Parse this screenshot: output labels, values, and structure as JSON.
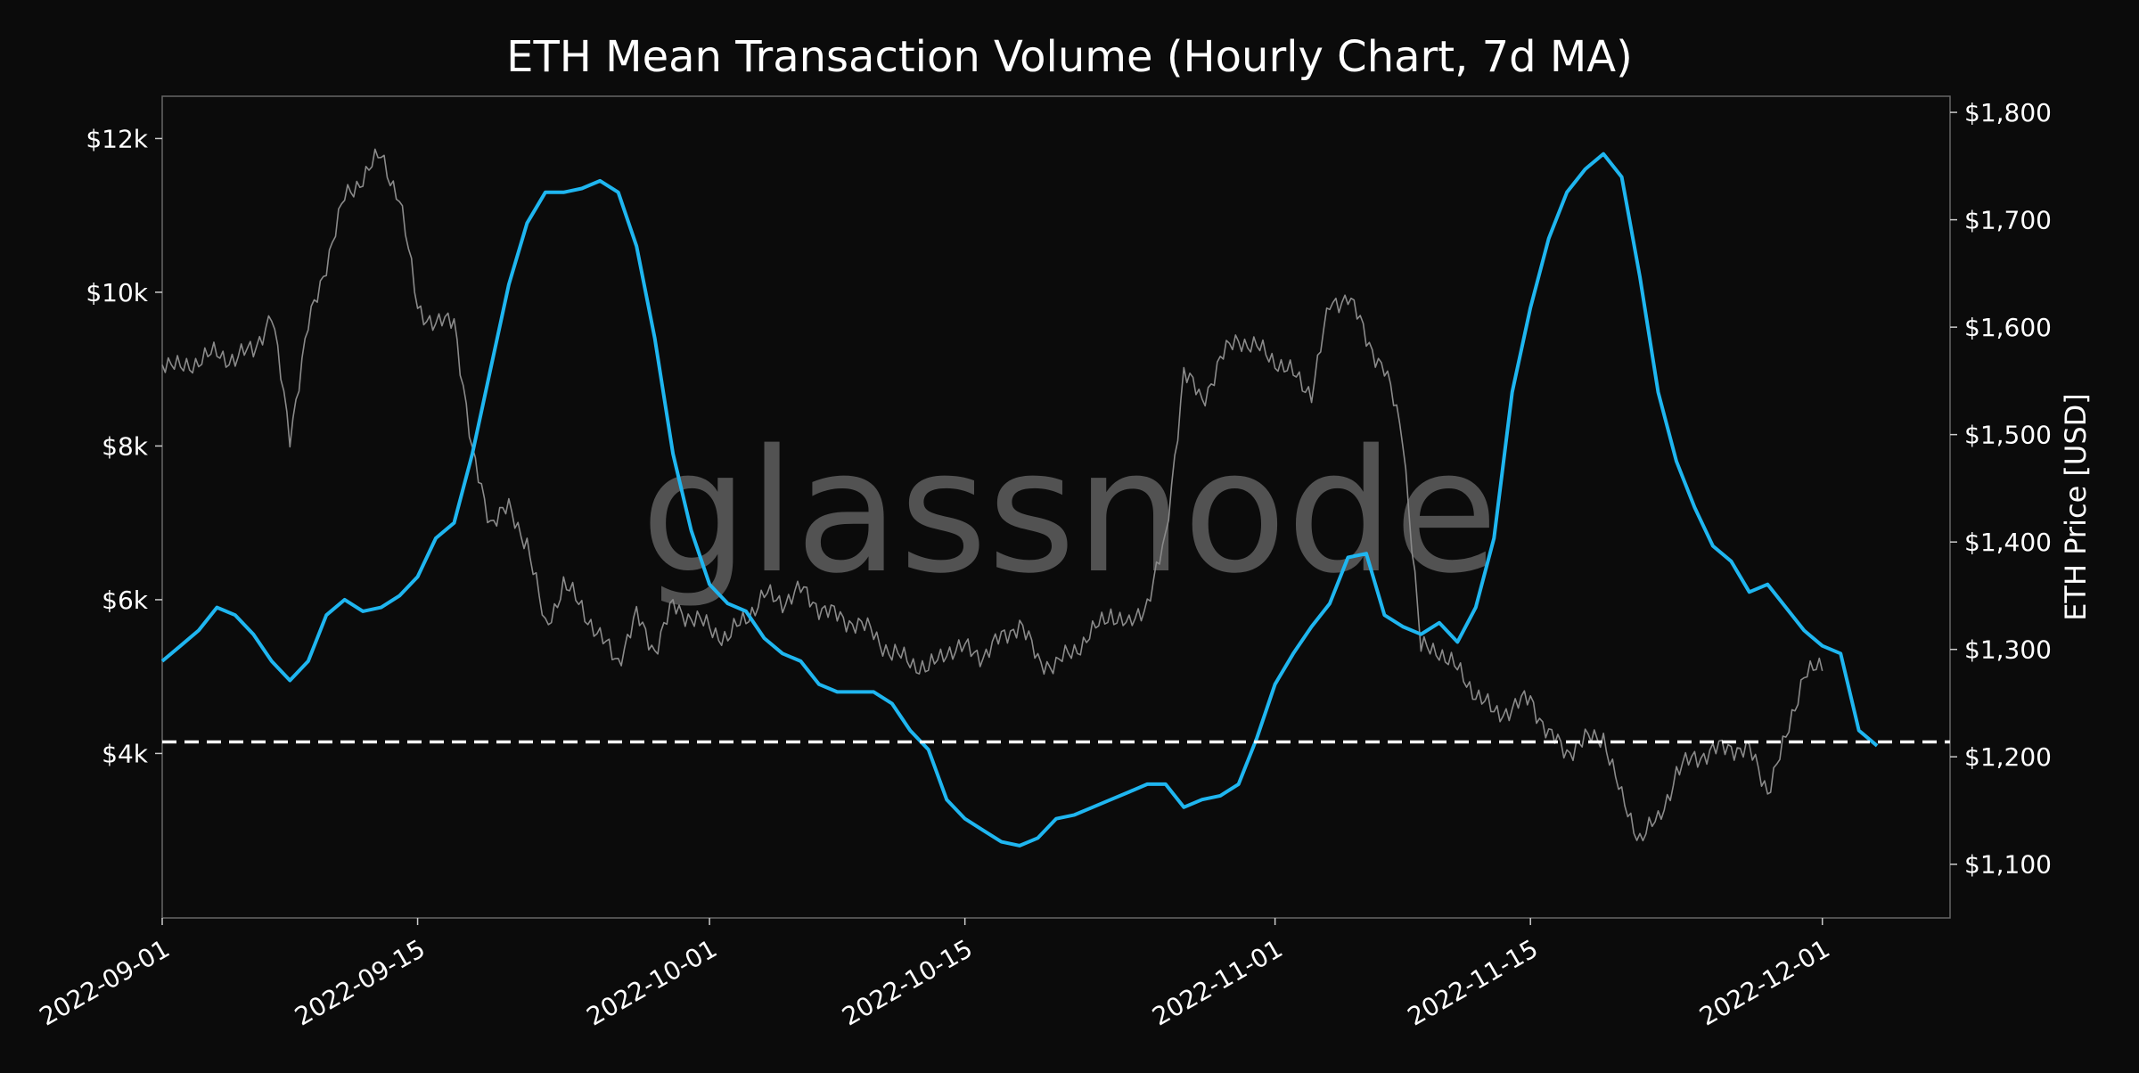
{
  "chart_data": {
    "type": "line",
    "title": "ETH Mean Transaction Volume (Hourly Chart, 7d MA)",
    "watermark": "glassnode",
    "xlabel": "",
    "ylabel_left": "",
    "ylabel_right": "ETH Price [USD]",
    "x_ticks": [
      "2022-09-01",
      "2022-09-15",
      "2022-10-01",
      "2022-10-15",
      "2022-11-01",
      "2022-11-15",
      "2022-12-01"
    ],
    "y_left_ticks": [
      {
        "value": 4000,
        "label": "$4k"
      },
      {
        "value": 6000,
        "label": "$6k"
      },
      {
        "value": 8000,
        "label": "$8k"
      },
      {
        "value": 10000,
        "label": "$10k"
      },
      {
        "value": 12000,
        "label": "$12k"
      }
    ],
    "y_right_ticks": [
      {
        "value": 1100,
        "label": "$1,100"
      },
      {
        "value": 1200,
        "label": "$1,200"
      },
      {
        "value": 1300,
        "label": "$1,300"
      },
      {
        "value": 1400,
        "label": "$1,400"
      },
      {
        "value": 1500,
        "label": "$1,500"
      },
      {
        "value": 1600,
        "label": "$1,600"
      },
      {
        "value": 1700,
        "label": "$1,700"
      },
      {
        "value": 1800,
        "label": "$1,800"
      }
    ],
    "xlim": [
      "2022-09-01",
      "2022-12-08"
    ],
    "ylim_left": [
      1860,
      12550
    ],
    "ylim_right": [
      1050,
      1815
    ],
    "reference_line": {
      "value": 4150,
      "style": "dashed",
      "color": "#ffffff"
    },
    "grid": false,
    "colors": {
      "volume": "#1fb6f0",
      "price": "#8a8a8a",
      "background": "#0b0b0b",
      "axes": "#666666",
      "watermark": "#5a5a5a"
    },
    "series": [
      {
        "axis": "left",
        "color": "#1fb6f0",
        "points": [
          [
            "2022-09-01",
            5200
          ],
          [
            "2022-09-02",
            5400
          ],
          [
            "2022-09-03",
            5600
          ],
          [
            "2022-09-04",
            5900
          ],
          [
            "2022-09-05",
            5800
          ],
          [
            "2022-09-06",
            5550
          ],
          [
            "2022-09-07",
            5200
          ],
          [
            "2022-09-08",
            4950
          ],
          [
            "2022-09-09",
            5200
          ],
          [
            "2022-09-10",
            5800
          ],
          [
            "2022-09-11",
            6000
          ],
          [
            "2022-09-12",
            5850
          ],
          [
            "2022-09-13",
            5900
          ],
          [
            "2022-09-14",
            6050
          ],
          [
            "2022-09-15",
            6300
          ],
          [
            "2022-09-16",
            6800
          ],
          [
            "2022-09-17",
            7000
          ],
          [
            "2022-09-18",
            7900
          ],
          [
            "2022-09-19",
            9000
          ],
          [
            "2022-09-20",
            10100
          ],
          [
            "2022-09-21",
            10900
          ],
          [
            "2022-09-22",
            11300
          ],
          [
            "2022-09-23",
            11300
          ],
          [
            "2022-09-24",
            11350
          ],
          [
            "2022-09-25",
            11450
          ],
          [
            "2022-09-26",
            11300
          ],
          [
            "2022-09-27",
            10600
          ],
          [
            "2022-09-28",
            9400
          ],
          [
            "2022-09-29",
            7900
          ],
          [
            "2022-09-30",
            6900
          ],
          [
            "2022-10-01",
            6200
          ],
          [
            "2022-10-02",
            5950
          ],
          [
            "2022-10-03",
            5850
          ],
          [
            "2022-10-04",
            5500
          ],
          [
            "2022-10-05",
            5300
          ],
          [
            "2022-10-06",
            5200
          ],
          [
            "2022-10-07",
            4900
          ],
          [
            "2022-10-08",
            4800
          ],
          [
            "2022-10-09",
            4800
          ],
          [
            "2022-10-10",
            4800
          ],
          [
            "2022-10-11",
            4650
          ],
          [
            "2022-10-12",
            4300
          ],
          [
            "2022-10-13",
            4050
          ],
          [
            "2022-10-14",
            3400
          ],
          [
            "2022-10-15",
            3150
          ],
          [
            "2022-10-16",
            3000
          ],
          [
            "2022-10-17",
            2850
          ],
          [
            "2022-10-18",
            2800
          ],
          [
            "2022-10-19",
            2900
          ],
          [
            "2022-10-20",
            3150
          ],
          [
            "2022-10-21",
            3200
          ],
          [
            "2022-10-22",
            3300
          ],
          [
            "2022-10-23",
            3400
          ],
          [
            "2022-10-24",
            3500
          ],
          [
            "2022-10-25",
            3600
          ],
          [
            "2022-10-26",
            3600
          ],
          [
            "2022-10-27",
            3300
          ],
          [
            "2022-10-28",
            3400
          ],
          [
            "2022-10-29",
            3450
          ],
          [
            "2022-10-30",
            3600
          ],
          [
            "2022-10-31",
            4200
          ],
          [
            "2022-11-01",
            4900
          ],
          [
            "2022-11-02",
            5300
          ],
          [
            "2022-11-03",
            5650
          ],
          [
            "2022-11-04",
            5950
          ],
          [
            "2022-11-05",
            6550
          ],
          [
            "2022-11-06",
            6600
          ],
          [
            "2022-11-07",
            5800
          ],
          [
            "2022-11-08",
            5650
          ],
          [
            "2022-11-09",
            5550
          ],
          [
            "2022-11-10",
            5700
          ],
          [
            "2022-11-11",
            5450
          ],
          [
            "2022-11-12",
            5900
          ],
          [
            "2022-11-13",
            6800
          ],
          [
            "2022-11-14",
            8700
          ],
          [
            "2022-11-15",
            9800
          ],
          [
            "2022-11-16",
            10700
          ],
          [
            "2022-11-17",
            11300
          ],
          [
            "2022-11-18",
            11600
          ],
          [
            "2022-11-19",
            11800
          ],
          [
            "2022-11-20",
            11500
          ],
          [
            "2022-11-21",
            10200
          ],
          [
            "2022-11-22",
            8700
          ],
          [
            "2022-11-23",
            7800
          ],
          [
            "2022-11-24",
            7200
          ],
          [
            "2022-11-25",
            6700
          ],
          [
            "2022-11-26",
            6500
          ],
          [
            "2022-11-27",
            6100
          ],
          [
            "2022-11-28",
            6200
          ],
          [
            "2022-11-29",
            5900
          ],
          [
            "2022-11-30",
            5600
          ],
          [
            "2022-12-01",
            5400
          ],
          [
            "2022-12-02",
            5300
          ],
          [
            "2022-12-03",
            4300
          ],
          [
            "2022-12-04",
            4100
          ]
        ]
      },
      {
        "axis": "right",
        "color": "#8a8a8a",
        "points": [
          [
            "2022-09-01",
            1570
          ],
          [
            "2022-09-02",
            1560
          ],
          [
            "2022-09-03",
            1570
          ],
          [
            "2022-09-04",
            1575
          ],
          [
            "2022-09-05",
            1570
          ],
          [
            "2022-09-06",
            1580
          ],
          [
            "2022-09-07",
            1610
          ],
          [
            "2022-09-08",
            1500
          ],
          [
            "2022-09-09",
            1600
          ],
          [
            "2022-09-10",
            1660
          ],
          [
            "2022-09-11",
            1720
          ],
          [
            "2022-09-12",
            1740
          ],
          [
            "2022-09-13",
            1760
          ],
          [
            "2022-09-14",
            1720
          ],
          [
            "2022-09-15",
            1620
          ],
          [
            "2022-09-16",
            1600
          ],
          [
            "2022-09-17",
            1610
          ],
          [
            "2022-09-18",
            1480
          ],
          [
            "2022-09-19",
            1420
          ],
          [
            "2022-09-20",
            1430
          ],
          [
            "2022-09-21",
            1400
          ],
          [
            "2022-09-22",
            1320
          ],
          [
            "2022-09-23",
            1360
          ],
          [
            "2022-09-24",
            1340
          ],
          [
            "2022-09-25",
            1310
          ],
          [
            "2022-09-26",
            1290
          ],
          [
            "2022-09-27",
            1330
          ],
          [
            "2022-09-28",
            1300
          ],
          [
            "2022-09-29",
            1340
          ],
          [
            "2022-09-30",
            1330
          ],
          [
            "2022-10-01",
            1320
          ],
          [
            "2022-10-02",
            1310
          ],
          [
            "2022-10-03",
            1330
          ],
          [
            "2022-10-04",
            1350
          ],
          [
            "2022-10-05",
            1345
          ],
          [
            "2022-10-06",
            1355
          ],
          [
            "2022-10-07",
            1340
          ],
          [
            "2022-10-08",
            1330
          ],
          [
            "2022-10-09",
            1325
          ],
          [
            "2022-10-10",
            1315
          ],
          [
            "2022-10-11",
            1295
          ],
          [
            "2022-10-12",
            1290
          ],
          [
            "2022-10-13",
            1280
          ],
          [
            "2022-10-14",
            1300
          ],
          [
            "2022-10-15",
            1300
          ],
          [
            "2022-10-16",
            1295
          ],
          [
            "2022-10-17",
            1310
          ],
          [
            "2022-10-18",
            1325
          ],
          [
            "2022-10-19",
            1290
          ],
          [
            "2022-10-20",
            1285
          ],
          [
            "2022-10-21",
            1300
          ],
          [
            "2022-10-22",
            1315
          ],
          [
            "2022-10-23",
            1335
          ],
          [
            "2022-10-24",
            1320
          ],
          [
            "2022-10-25",
            1345
          ],
          [
            "2022-10-26",
            1400
          ],
          [
            "2022-10-27",
            1560
          ],
          [
            "2022-10-28",
            1530
          ],
          [
            "2022-10-29",
            1570
          ],
          [
            "2022-10-30",
            1590
          ],
          [
            "2022-10-31",
            1580
          ],
          [
            "2022-11-01",
            1570
          ],
          [
            "2022-11-02",
            1555
          ],
          [
            "2022-11-03",
            1540
          ],
          [
            "2022-11-04",
            1620
          ],
          [
            "2022-11-05",
            1630
          ],
          [
            "2022-11-06",
            1590
          ],
          [
            "2022-11-07",
            1560
          ],
          [
            "2022-11-08",
            1500
          ],
          [
            "2022-11-09",
            1300
          ],
          [
            "2022-11-10",
            1300
          ],
          [
            "2022-11-11",
            1280
          ],
          [
            "2022-11-12",
            1260
          ],
          [
            "2022-11-13",
            1240
          ],
          [
            "2022-11-14",
            1245
          ],
          [
            "2022-11-15",
            1255
          ],
          [
            "2022-11-16",
            1220
          ],
          [
            "2022-11-17",
            1205
          ],
          [
            "2022-11-18",
            1215
          ],
          [
            "2022-11-19",
            1220
          ],
          [
            "2022-11-20",
            1160
          ],
          [
            "2022-11-21",
            1125
          ],
          [
            "2022-11-22",
            1140
          ],
          [
            "2022-11-23",
            1185
          ],
          [
            "2022-11-24",
            1200
          ],
          [
            "2022-11-25",
            1205
          ],
          [
            "2022-11-26",
            1210
          ],
          [
            "2022-11-27",
            1205
          ],
          [
            "2022-11-28",
            1170
          ],
          [
            "2022-11-29",
            1215
          ],
          [
            "2022-11-30",
            1280
          ],
          [
            "2022-12-01",
            1280
          ]
        ]
      }
    ]
  }
}
